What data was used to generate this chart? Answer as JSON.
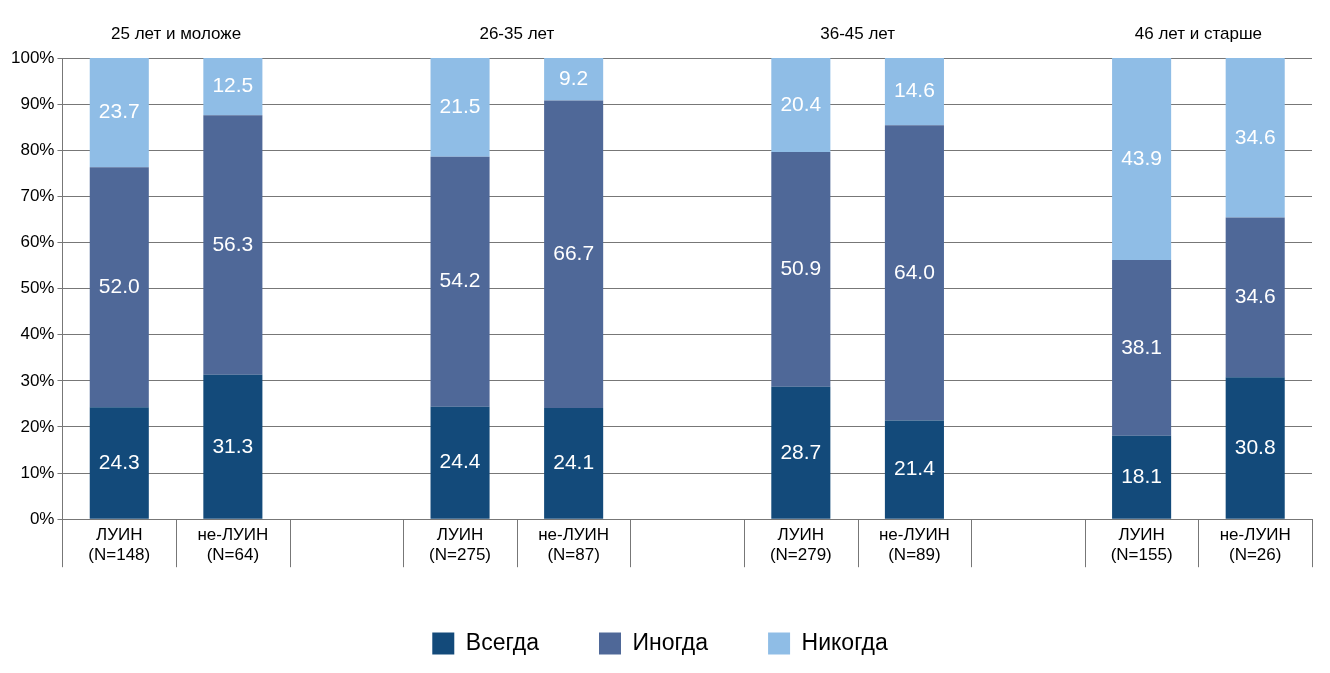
{
  "chart_data": {
    "type": "bar",
    "stacked": true,
    "categories": [
      "ЛУИН\n(N=148)",
      "не-ЛУИН\n(N=64)",
      null,
      "ЛУИН\n(N=275)",
      "не-ЛУИН\n(N=87)",
      null,
      "ЛУИН\n(N=279)",
      "не-ЛУИН\n(N=89)",
      null,
      "ЛУИН\n(N=155)",
      "не-ЛУИН\n(N=26)"
    ],
    "annotations": [
      "25 лет и моложе",
      "26-35 лет",
      "36-45 лет",
      "46 лет и старше"
    ],
    "series": [
      {
        "name": "Всегда",
        "color": "#134a7a",
        "values": [
          24.3,
          31.3,
          null,
          24.4,
          24.1,
          null,
          28.7,
          21.4,
          null,
          18.1,
          30.8
        ],
        "value_labels": [
          "24.3",
          "31.3",
          null,
          "24.4",
          "24.1",
          null,
          "28.7",
          "21.4",
          null,
          "18.1",
          "30.8"
        ]
      },
      {
        "name": "Иногда",
        "color": "#4f6898",
        "values": [
          52.0,
          56.3,
          null,
          54.2,
          66.7,
          null,
          50.9,
          64.0,
          null,
          38.1,
          34.6
        ],
        "value_labels": [
          "52.0",
          "56.3",
          null,
          "54.2",
          "66.7",
          null,
          "50.9",
          "64.0",
          null,
          "38.1",
          "34.6"
        ]
      },
      {
        "name": "Никогда",
        "color": "#8fbde6",
        "values": [
          23.7,
          12.5,
          null,
          21.5,
          9.2,
          null,
          20.4,
          14.6,
          null,
          43.9,
          34.6
        ],
        "value_labels": [
          "23.7",
          "12.5",
          null,
          "21.5",
          "9.2",
          null,
          "20.4",
          "14.6",
          null,
          "43.9",
          "34.6"
        ]
      }
    ],
    "ylim": [
      0,
      100
    ],
    "yticks": [
      {
        "value": 0,
        "label": "0%"
      },
      {
        "value": 10,
        "label": "10%"
      },
      {
        "value": 20,
        "label": "20%"
      },
      {
        "value": 30,
        "label": "30%"
      },
      {
        "value": 40,
        "label": "40%"
      },
      {
        "value": 50,
        "label": "50%"
      },
      {
        "value": 60,
        "label": "60%"
      },
      {
        "value": 70,
        "label": "70%"
      },
      {
        "value": 80,
        "label": "80%"
      },
      {
        "value": 90,
        "label": "90%"
      },
      {
        "value": 100,
        "label": "100%"
      }
    ],
    "grid": "y",
    "legend": "bottom"
  }
}
